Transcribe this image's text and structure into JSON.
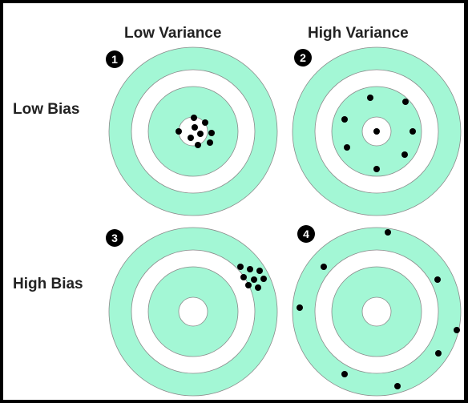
{
  "headers": {
    "columns": [
      "Low Variance",
      "High Variance"
    ],
    "rows": [
      "Low Bias",
      "High Bias"
    ]
  },
  "colors": {
    "ring": "#a3f7d5",
    "gap": "#ffffff",
    "stroke": "#8a8a8a",
    "hit": "#000000",
    "background": "#000000"
  },
  "panels": [
    {
      "number": "1",
      "row": "Low Bias",
      "column": "Low Variance"
    },
    {
      "number": "2",
      "row": "Low Bias",
      "column": "High Variance"
    },
    {
      "number": "3",
      "row": "High Bias",
      "column": "Low Variance"
    },
    {
      "number": "4",
      "row": "High Bias",
      "column": "High Variance"
    }
  ]
}
